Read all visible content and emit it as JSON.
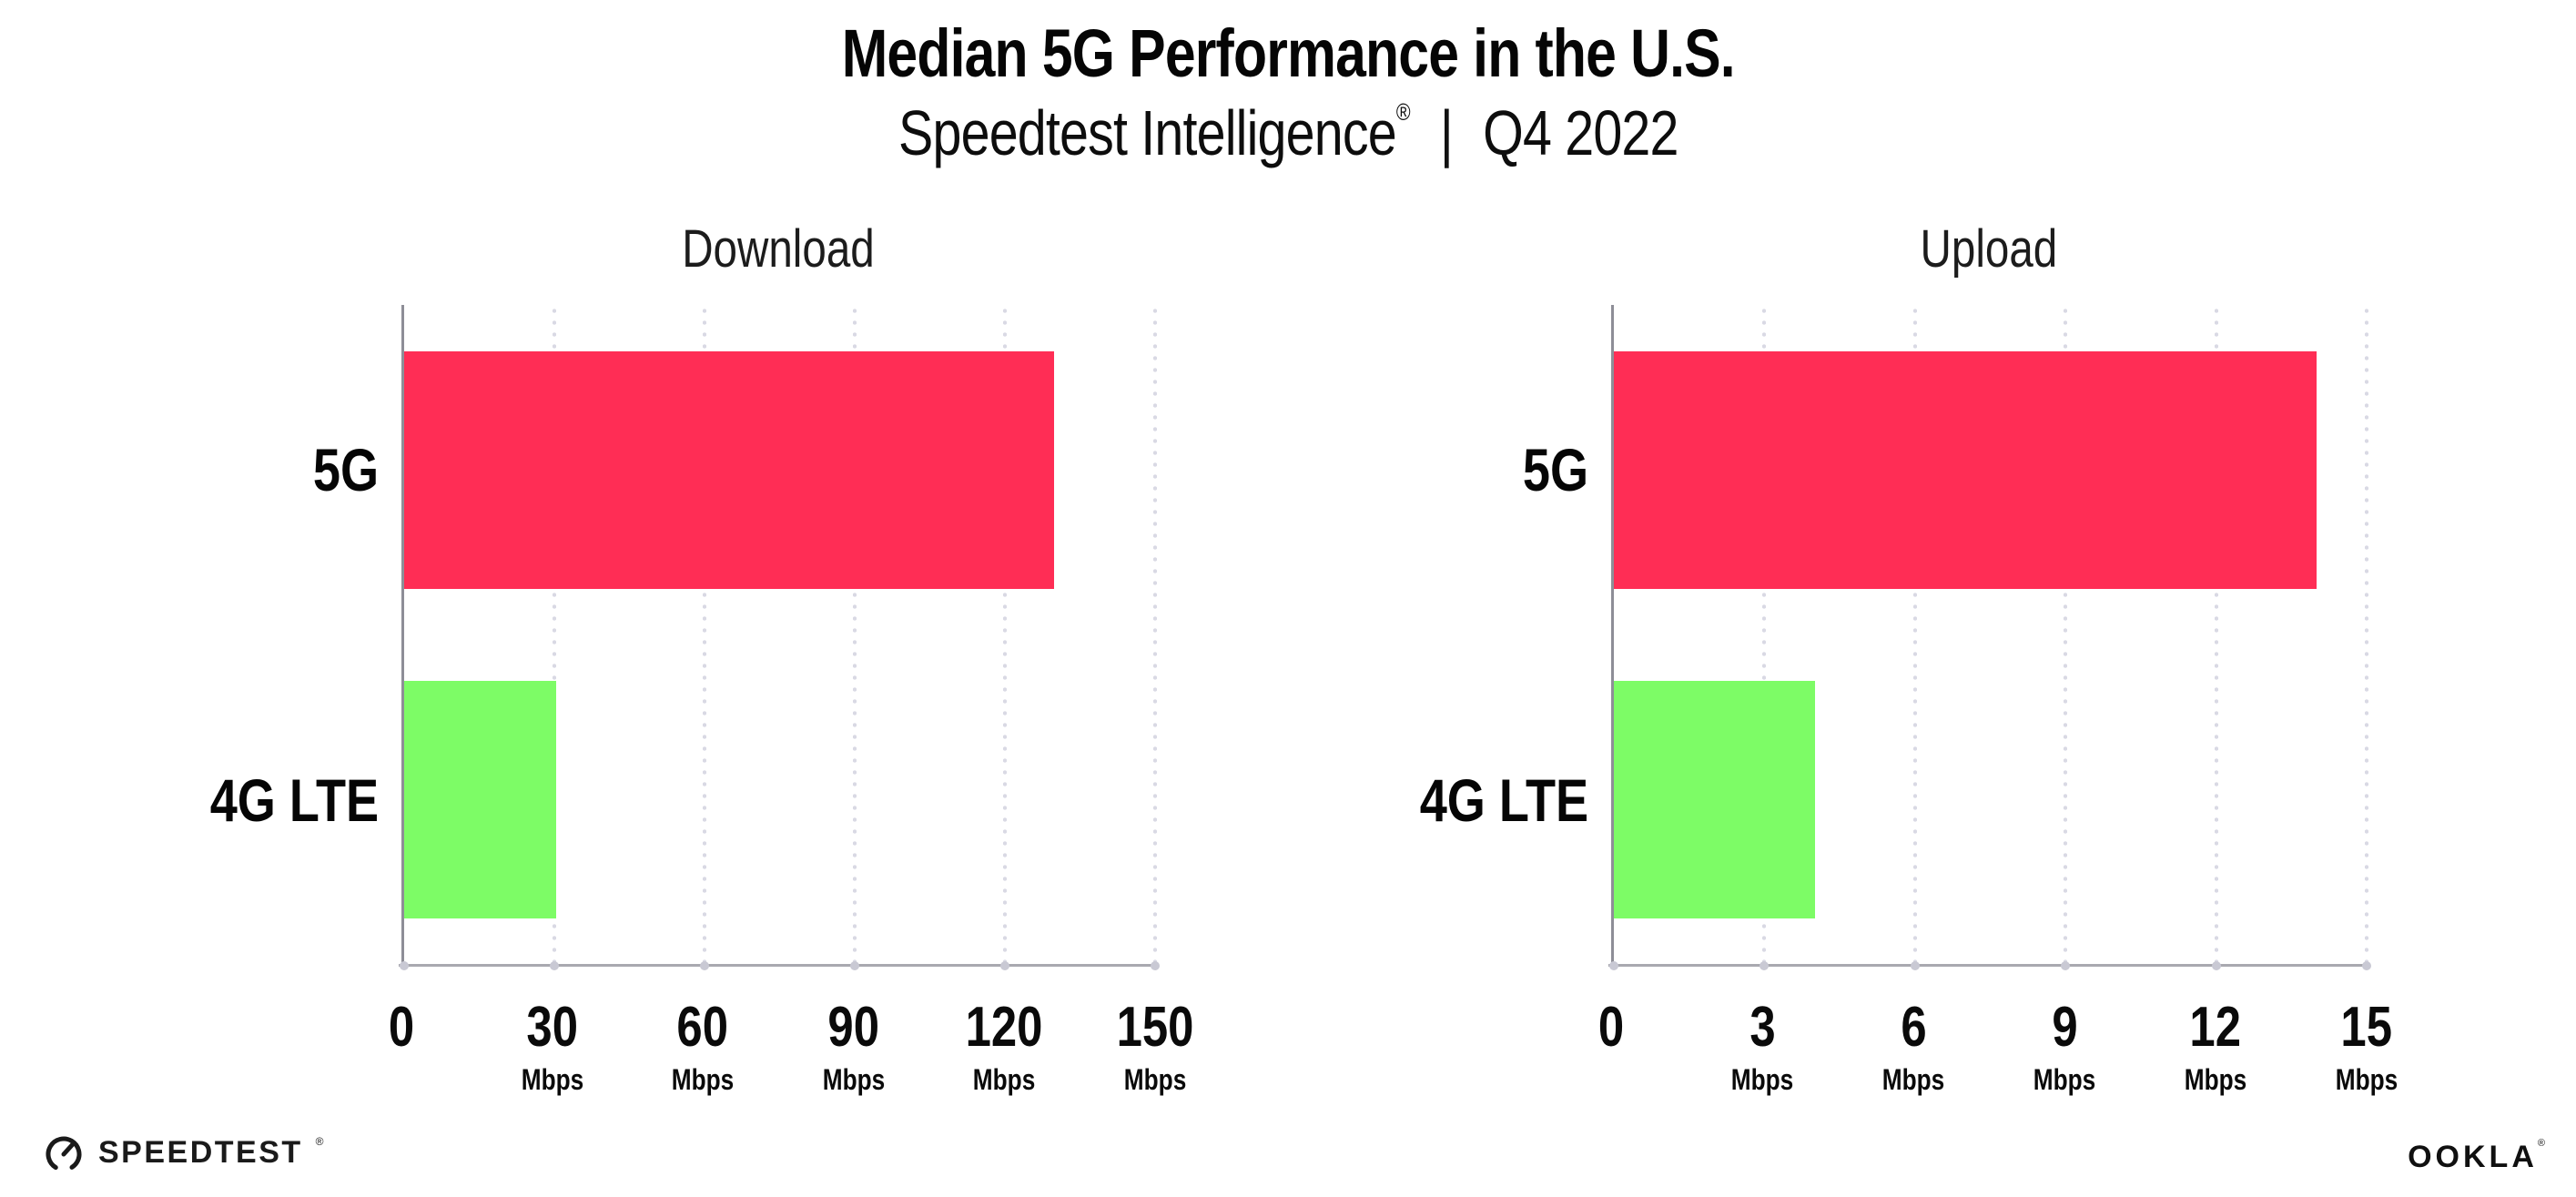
{
  "page": {
    "title": "Median 5G Performance in the U.S.",
    "subtitle": {
      "brand": "Speedtest Intelligence",
      "registered": "®",
      "separator": "|",
      "period": "Q4 2022"
    },
    "footer": {
      "speedtest_wordmark": "SPEEDTEST",
      "speedtest_trademark": "®",
      "ookla_wordmark": "OOKLA",
      "ookla_trademark": "®"
    }
  },
  "colors": {
    "bar_5g": "#FF2D55",
    "bar_4g_lte": "#7DFC66",
    "gridline_dots": "#D9D9E4",
    "x_axis_line": "#A9A9B0",
    "y_axis_line": "#8E8E97",
    "axis_tick_dot": "#C9C9D4",
    "text": "#000000"
  },
  "chart_data": [
    {
      "type": "bar",
      "orientation": "horizontal",
      "title": "Download",
      "categories": [
        "5G",
        "4G LTE"
      ],
      "values": [
        129.8,
        30.3
      ],
      "unit": "Mbps",
      "xlim": [
        0,
        150
      ],
      "ticks": [
        0,
        30,
        60,
        90,
        120,
        150
      ],
      "tick_unit_label": "Mbps",
      "bar_colors": [
        "#FF2D55",
        "#7DFC66"
      ],
      "grid": "vertical-dotted",
      "legend": "none"
    },
    {
      "type": "bar",
      "orientation": "horizontal",
      "title": "Upload",
      "categories": [
        "5G",
        "4G LTE"
      ],
      "values": [
        14.0,
        4.0
      ],
      "unit": "Mbps",
      "xlim": [
        0,
        15
      ],
      "ticks": [
        0,
        3,
        6,
        9,
        12,
        15
      ],
      "tick_unit_label": "Mbps",
      "bar_colors": [
        "#FF2D55",
        "#7DFC66"
      ],
      "grid": "vertical-dotted",
      "legend": "none"
    }
  ]
}
